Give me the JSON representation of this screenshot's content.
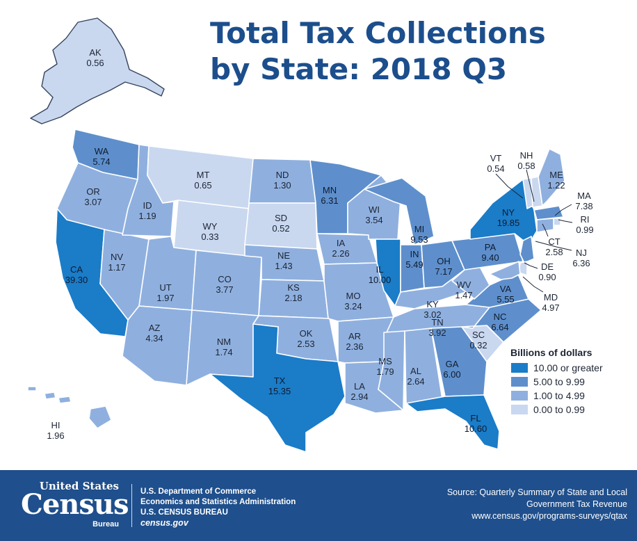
{
  "title": {
    "line1": "Total Tax Collections",
    "line2": "by State: 2018 Q3"
  },
  "legend": {
    "title": "Billions of dollars",
    "bins": [
      {
        "label": "10.00 or greater",
        "color": "#1b7cc8"
      },
      {
        "label": "5.00 to 9.99",
        "color": "#5e8fcc"
      },
      {
        "label": "1.00 to 4.99",
        "color": "#8fb0df"
      },
      {
        "label": "0.00 to 0.99",
        "color": "#c9d8ef"
      }
    ]
  },
  "states": [
    {
      "abbr": "AK",
      "value": "0.56"
    },
    {
      "abbr": "WA",
      "value": "5.74"
    },
    {
      "abbr": "OR",
      "value": "3.07"
    },
    {
      "abbr": "CA",
      "value": "39.30"
    },
    {
      "abbr": "NV",
      "value": "1.17"
    },
    {
      "abbr": "ID",
      "value": "1.19"
    },
    {
      "abbr": "MT",
      "value": "0.65"
    },
    {
      "abbr": "WY",
      "value": "0.33"
    },
    {
      "abbr": "UT",
      "value": "1.97"
    },
    {
      "abbr": "AZ",
      "value": "4.34"
    },
    {
      "abbr": "CO",
      "value": "3.77"
    },
    {
      "abbr": "NM",
      "value": "1.74"
    },
    {
      "abbr": "ND",
      "value": "1.30"
    },
    {
      "abbr": "SD",
      "value": "0.52"
    },
    {
      "abbr": "NE",
      "value": "1.43"
    },
    {
      "abbr": "KS",
      "value": "2.18"
    },
    {
      "abbr": "OK",
      "value": "2.53"
    },
    {
      "abbr": "TX",
      "value": "15.35"
    },
    {
      "abbr": "MN",
      "value": "6.31"
    },
    {
      "abbr": "IA",
      "value": "2.26"
    },
    {
      "abbr": "MO",
      "value": "3.24"
    },
    {
      "abbr": "AR",
      "value": "2.36"
    },
    {
      "abbr": "LA",
      "value": "2.94"
    },
    {
      "abbr": "WI",
      "value": "3.54"
    },
    {
      "abbr": "IL",
      "value": "10.00"
    },
    {
      "abbr": "MI",
      "value": "9.53"
    },
    {
      "abbr": "IN",
      "value": "5.49"
    },
    {
      "abbr": "OH",
      "value": "7.17"
    },
    {
      "abbr": "KY",
      "value": "3.02"
    },
    {
      "abbr": "TN",
      "value": "3.92"
    },
    {
      "abbr": "MS",
      "value": "1.79"
    },
    {
      "abbr": "AL",
      "value": "2.64"
    },
    {
      "abbr": "GA",
      "value": "6.00"
    },
    {
      "abbr": "FL",
      "value": "10.60"
    },
    {
      "abbr": "SC",
      "value": "0.32"
    },
    {
      "abbr": "NC",
      "value": "6.64"
    },
    {
      "abbr": "VA",
      "value": "5.55"
    },
    {
      "abbr": "WV",
      "value": "1.47"
    },
    {
      "abbr": "PA",
      "value": "9.40"
    },
    {
      "abbr": "NY",
      "value": "19.85"
    },
    {
      "abbr": "VT",
      "value": "0.54"
    },
    {
      "abbr": "NH",
      "value": "0.58"
    },
    {
      "abbr": "ME",
      "value": "1.22"
    },
    {
      "abbr": "MA",
      "value": "7.38"
    },
    {
      "abbr": "RI",
      "value": "0.99"
    },
    {
      "abbr": "CT",
      "value": "2.58"
    },
    {
      "abbr": "NJ",
      "value": "6.36"
    },
    {
      "abbr": "DE",
      "value": "0.90"
    },
    {
      "abbr": "MD",
      "value": "4.97"
    },
    {
      "abbr": "HI",
      "value": "1.96"
    }
  ],
  "footer": {
    "logo_top": "United States",
    "logo_main": "Census",
    "logo_bottom": "Bureau",
    "agency_line1": "U.S. Department of Commerce",
    "agency_line2": "Economics and Statistics Administration",
    "agency_line3": "U.S. CENSUS BUREAU",
    "agency_line4": "census.gov",
    "source_line1": "Source: Quarterly Summary of State and Local",
    "source_line2": "Government Tax Revenue",
    "source_line3": "www.census.gov/programs-surveys/qtax"
  }
}
